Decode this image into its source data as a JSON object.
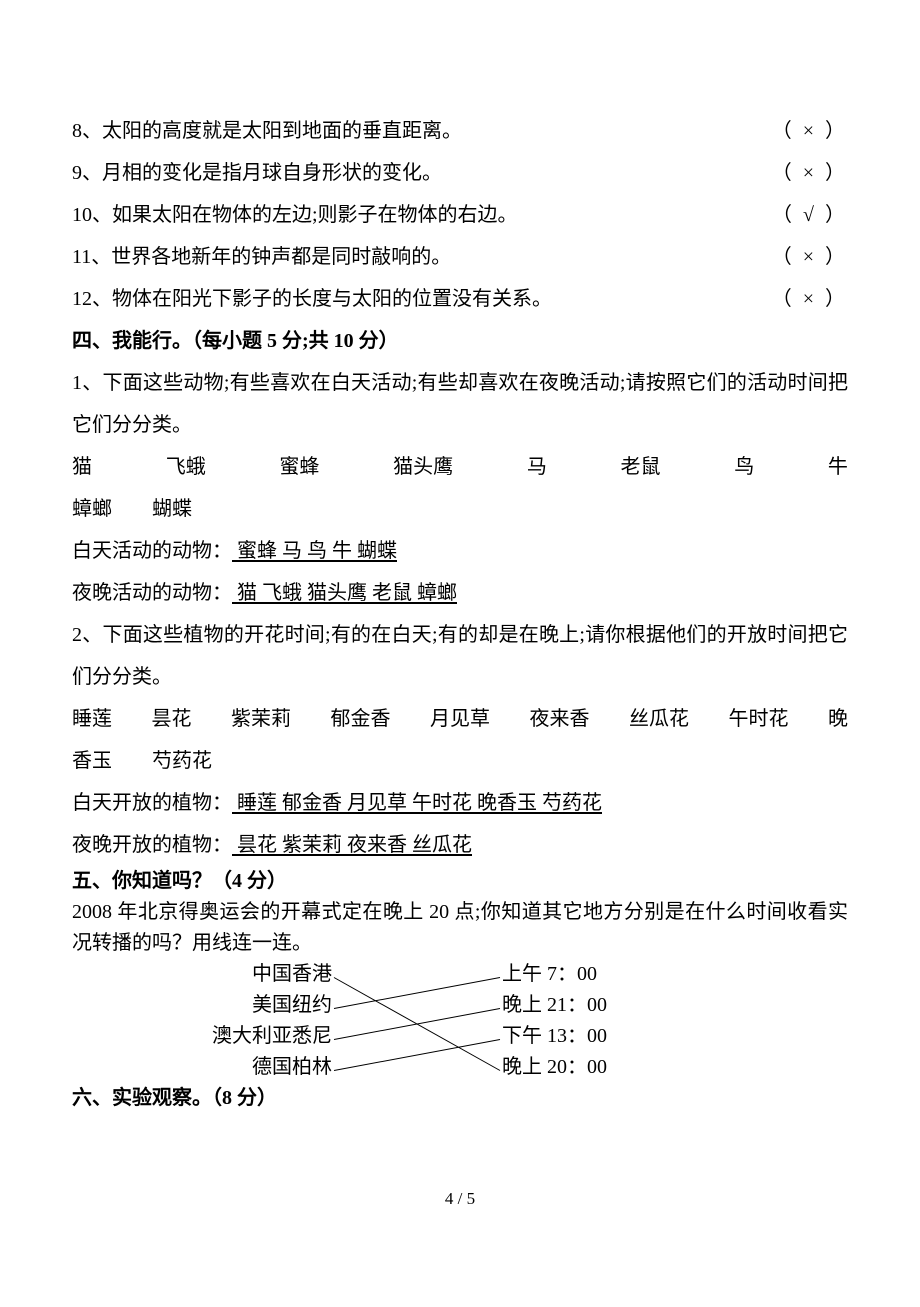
{
  "judgments": [
    {
      "num": "8、",
      "text": "太阳的高度就是太阳到地面的垂直距离。",
      "mark": "（ × ）"
    },
    {
      "num": "9、",
      "text": "月相的变化是指月球自身形状的变化。",
      "mark": "（ × ）"
    },
    {
      "num": "10、",
      "text": "如果太阳在物体的左边;则影子在物体的右边。",
      "mark": "（ √ ）"
    },
    {
      "num": "11、",
      "text": "世界各地新年的钟声都是同时敲响的。",
      "mark": "（ × ）"
    },
    {
      "num": "12、",
      "text": "物体在阳光下影子的长度与太阳的位置没有关系。",
      "mark": "（ × ）"
    }
  ],
  "section4": {
    "header": "四、我能行。（每小题 5 分;共 10 分）",
    "q1": {
      "prompt": "1、下面这些动物;有些喜欢在白天活动;有些却喜欢在夜晚活动;请按照它们的活动时间把它们分分类。",
      "animals_line1": [
        "猫",
        "飞蛾",
        "蜜蜂",
        "猫头鹰",
        "马",
        "老鼠",
        "鸟",
        "牛"
      ],
      "animals_line2": [
        "蟑螂",
        "蝴蝶"
      ],
      "day_label": "白天活动的动物：",
      "day_answer": "  蜜蜂   马   鸟   牛   蝴蝶   ",
      "night_label": "夜晚活动的动物：",
      "night_answer": "  猫   飞蛾   猫头鹰   老鼠   蟑螂   "
    },
    "q2": {
      "prompt": "2、下面这些植物的开花时间;有的在白天;有的却是在晚上;请你根据他们的开放时间把它们分分类。",
      "plants_line1": [
        "睡莲",
        "昙花",
        "紫茉莉",
        "郁金香",
        "月见草",
        "夜来香",
        "丝瓜花",
        "午时花",
        "晚"
      ],
      "plants_line2": [
        "香玉",
        "芍药花"
      ],
      "day_label": "白天开放的植物：",
      "day_answer": "  睡莲     郁金香     月见草     午时花     晚香玉     芍药花   ",
      "night_label": "夜晚开放的植物：",
      "night_answer": "  昙花   紫茉莉     夜来香     丝瓜花    "
    }
  },
  "section5": {
    "header": "五、你知道吗？（4 分）",
    "prompt": "2008 年北京得奥运会的开幕式定在晚上 20 点;你知道其它地方分别是在什么时间收看实况转播的吗？用线连一连。",
    "left": [
      "中国香港",
      "美国纽约",
      "澳大利亚悉尼",
      "德国柏林"
    ],
    "right": [
      "上午 7：00",
      "晚上 21：00",
      "下午 13：00",
      "晚上 20：00"
    ],
    "lines": [
      {
        "from": 0,
        "to": 3
      },
      {
        "from": 1,
        "to": 0
      },
      {
        "from": 2,
        "to": 1
      },
      {
        "from": 3,
        "to": 2
      }
    ],
    "line_color": "#000000",
    "line_width": 1
  },
  "section6": {
    "header": "六、实验观察。（8 分）"
  },
  "page_number": "4 / 5",
  "colors": {
    "text": "#000000",
    "background": "#ffffff"
  },
  "typography": {
    "body_fontsize": 20,
    "font_family": "SimSun"
  }
}
